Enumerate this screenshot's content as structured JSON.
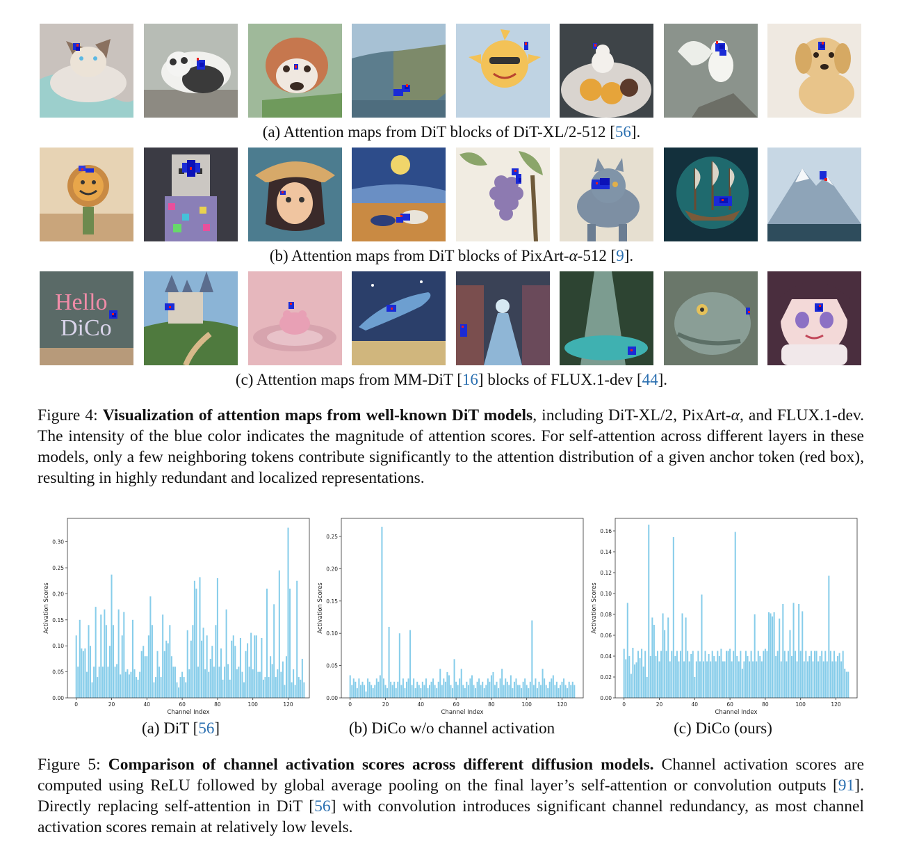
{
  "colors": {
    "attention_blue": "#0a14d8",
    "anchor_red": "#e81e1e",
    "bar_color": "#87cdea",
    "citation": "#2a6fb0"
  },
  "figure4": {
    "rows": [
      {
        "subcaption": {
          "pre": "(a) Attention maps from DiT blocks of DiT-XL/2-512 [",
          "cite": "56",
          "post": "]."
        },
        "images": [
          "siamese cat",
          "panda",
          "red panda",
          "coastal cliffs",
          "cartoon sun with sunglasses",
          "ice cream sundae",
          "white cockatoo",
          "golden retriever puppy"
        ]
      },
      {
        "subcaption": {
          "pre": "(b) Attention maps from DiT blocks of PixArt-",
          "math": "α",
          "mid": "-512 [",
          "cite": "9",
          "post": "]."
        },
        "images": [
          "smiling cactus flower",
          "pixel-art llama",
          "anime pirate boy",
          "starry night painting",
          "grapes illustration",
          "steampunk cat",
          "glowing ship",
          "snowy mountains"
        ]
      },
      {
        "subcaption": {
          "pre": "(c) Attention maps from MM-DiT [",
          "cite": "16",
          "mid": "] blocks of FLUX.1-dev [",
          "cite2": "44",
          "post": "]."
        },
        "images": [
          "neon sign",
          "fairytale castle",
          "frog in water",
          "whale over city",
          "neon street",
          "forest waterfall",
          "dragon portrait",
          "anime girl"
        ],
        "image_text": {
          "neon_line1": "Hello",
          "neon_line2": "DiCo"
        }
      }
    ],
    "caption": {
      "label": "Figure 4:",
      "bold": "Visualization of attention maps from well-known DiT models",
      "text1": ", including DiT-XL/2, PixArt-",
      "math": "α",
      "text2": ", and FLUX.1-dev. The intensity of the blue color indicates the magnitude of attention scores. For self-attention across different layers in these models, only a few neighboring tokens contribute significantly to the attention distribution of a given anchor token (red box), resulting in highly redundant and localized representations."
    }
  },
  "figure5": {
    "caption": {
      "label": "Figure 5:",
      "bold": "Comparison of channel activation scores across different diffusion models.",
      "text1": " Channel activation scores are computed using ReLU followed by global average pooling on the final layer’s self-attention or convolution outputs [",
      "cite1": "91",
      "text2": "]. Directly replacing self-attention in DiT [",
      "cite2": "56",
      "text3": "] with convolution introduces significant channel redundancy, as most channel activation scores remain at relatively low levels."
    },
    "subcaptions": [
      {
        "pre": "(a) DiT [",
        "cite": "56",
        "post": "]"
      },
      {
        "pre": "(b) DiCo w/o channel activation",
        "cite": "",
        "post": ""
      },
      {
        "pre": "(c) DiCo (ours)",
        "cite": "",
        "post": ""
      }
    ]
  },
  "chart_data": [
    {
      "type": "bar",
      "xlabel": "Channel Index",
      "ylabel": "Activation Scores",
      "xlim": [
        -5,
        132
      ],
      "ylim": [
        0,
        0.345
      ],
      "xticks": [
        0,
        20,
        40,
        60,
        80,
        100,
        120
      ],
      "yticks": [
        0.0,
        0.05,
        0.1,
        0.15,
        0.2,
        0.25,
        0.3
      ],
      "ytick_labels": [
        "0.00",
        "0.05",
        "0.10",
        "0.15",
        "0.20",
        "0.25",
        "0.30"
      ],
      "x": "channels 0-127",
      "values": [
        0.12,
        0.06,
        0.15,
        0.095,
        0.09,
        0.095,
        0.05,
        0.14,
        0.1,
        0.03,
        0.06,
        0.175,
        0.04,
        0.06,
        0.16,
        0.06,
        0.17,
        0.14,
        0.06,
        0.1,
        0.237,
        0.14,
        0.06,
        0.065,
        0.17,
        0.045,
        0.12,
        0.165,
        0.05,
        0.055,
        0.045,
        0.05,
        0.15,
        0.055,
        0.04,
        0.035,
        0.05,
        0.09,
        0.1,
        0.08,
        0.08,
        0.12,
        0.195,
        0.14,
        0.03,
        0.04,
        0.09,
        0.06,
        0.04,
        0.16,
        0.09,
        0.11,
        0.105,
        0.14,
        0.08,
        0.06,
        0.06,
        0.03,
        0.02,
        0.04,
        0.05,
        0.04,
        0.03,
        0.13,
        0.055,
        0.11,
        0.14,
        0.225,
        0.21,
        0.06,
        0.232,
        0.11,
        0.135,
        0.055,
        0.12,
        0.05,
        0.075,
        0.1,
        0.06,
        0.14,
        0.23,
        0.06,
        0.095,
        0.035,
        0.06,
        0.17,
        0.065,
        0.035,
        0.11,
        0.12,
        0.1,
        0.055,
        0.06,
        0.115,
        0.05,
        0.03,
        0.09,
        0.105,
        0.06,
        0.125,
        0.055,
        0.12,
        0.12,
        0.05,
        0.05,
        0.115,
        0.035,
        0.04,
        0.21,
        0.04,
        0.08,
        0.065,
        0.18,
        0.04,
        0.055,
        0.245,
        0.05,
        0.07,
        0.025,
        0.08,
        0.327,
        0.21,
        0.03,
        0.055,
        0.025,
        0.225,
        0.04,
        0.035,
        0.075,
        0.03
      ],
      "bar_color": "#87cdea"
    },
    {
      "type": "bar",
      "xlabel": "Channel Index",
      "ylabel": "Activation Scores",
      "xlim": [
        -5,
        132
      ],
      "ylim": [
        0,
        0.278
      ],
      "xticks": [
        0,
        20,
        40,
        60,
        80,
        100,
        120
      ],
      "yticks": [
        0.0,
        0.05,
        0.1,
        0.15,
        0.2,
        0.25
      ],
      "ytick_labels": [
        "0.00",
        "0.05",
        "0.10",
        "0.15",
        "0.20",
        "0.25"
      ],
      "x": "channels 0-127",
      "values": [
        0.035,
        0.02,
        0.03,
        0.025,
        0.015,
        0.03,
        0.02,
        0.025,
        0.02,
        0.01,
        0.03,
        0.025,
        0.02,
        0.015,
        0.02,
        0.03,
        0.025,
        0.035,
        0.265,
        0.03,
        0.02,
        0.015,
        0.11,
        0.025,
        0.02,
        0.025,
        0.015,
        0.025,
        0.1,
        0.02,
        0.03,
        0.015,
        0.025,
        0.03,
        0.105,
        0.02,
        0.03,
        0.015,
        0.025,
        0.02,
        0.015,
        0.025,
        0.02,
        0.03,
        0.015,
        0.02,
        0.025,
        0.03,
        0.02,
        0.015,
        0.025,
        0.045,
        0.02,
        0.03,
        0.025,
        0.04,
        0.035,
        0.02,
        0.015,
        0.06,
        0.025,
        0.02,
        0.03,
        0.045,
        0.02,
        0.015,
        0.025,
        0.02,
        0.03,
        0.035,
        0.02,
        0.015,
        0.025,
        0.03,
        0.02,
        0.025,
        0.015,
        0.02,
        0.03,
        0.025,
        0.035,
        0.04,
        0.02,
        0.025,
        0.015,
        0.03,
        0.045,
        0.02,
        0.03,
        0.025,
        0.02,
        0.035,
        0.015,
        0.025,
        0.03,
        0.02,
        0.02,
        0.015,
        0.025,
        0.03,
        0.02,
        0.015,
        0.025,
        0.12,
        0.02,
        0.03,
        0.015,
        0.025,
        0.02,
        0.045,
        0.03,
        0.02,
        0.015,
        0.025,
        0.03,
        0.035,
        0.02,
        0.025,
        0.015,
        0.02,
        0.025,
        0.03,
        0.02,
        0.015,
        0.025,
        0.02,
        0.025,
        0.02
      ],
      "bar_color": "#87cdea"
    },
    {
      "type": "bar",
      "xlabel": "Channel Index",
      "ylabel": "Activation Scores",
      "xlim": [
        -5,
        132
      ],
      "ylim": [
        0,
        0.172
      ],
      "xticks": [
        0,
        20,
        40,
        60,
        80,
        100,
        120
      ],
      "yticks": [
        0.0,
        0.02,
        0.04,
        0.06,
        0.08,
        0.1,
        0.12,
        0.14,
        0.16
      ],
      "ytick_labels": [
        "0.00",
        "0.02",
        "0.04",
        "0.06",
        "0.08",
        "0.10",
        "0.12",
        "0.14",
        "0.16"
      ],
      "x": "channels 0-127",
      "values": [
        0.047,
        0.037,
        0.091,
        0.04,
        0.023,
        0.048,
        0.032,
        0.034,
        0.045,
        0.038,
        0.047,
        0.03,
        0.045,
        0.02,
        0.166,
        0.04,
        0.077,
        0.07,
        0.04,
        0.045,
        0.035,
        0.045,
        0.081,
        0.065,
        0.045,
        0.077,
        0.035,
        0.045,
        0.154,
        0.04,
        0.045,
        0.035,
        0.045,
        0.081,
        0.035,
        0.077,
        0.045,
        0.035,
        0.042,
        0.045,
        0.02,
        0.035,
        0.045,
        0.035,
        0.099,
        0.035,
        0.045,
        0.035,
        0.042,
        0.035,
        0.045,
        0.04,
        0.035,
        0.045,
        0.04,
        0.047,
        0.035,
        0.035,
        0.045,
        0.045,
        0.047,
        0.035,
        0.045,
        0.159,
        0.04,
        0.035,
        0.045,
        0.028,
        0.035,
        0.045,
        0.04,
        0.035,
        0.045,
        0.035,
        0.08,
        0.035,
        0.045,
        0.04,
        0.035,
        0.045,
        0.047,
        0.045,
        0.082,
        0.081,
        0.078,
        0.082,
        0.04,
        0.045,
        0.076,
        0.035,
        0.09,
        0.045,
        0.035,
        0.045,
        0.065,
        0.04,
        0.091,
        0.045,
        0.035,
        0.09,
        0.045,
        0.083,
        0.035,
        0.045,
        0.035,
        0.04,
        0.045,
        0.035,
        0.045,
        0.045,
        0.035,
        0.04,
        0.045,
        0.035,
        0.045,
        0.035,
        0.117,
        0.045,
        0.035,
        0.045,
        0.035,
        0.04,
        0.043,
        0.035,
        0.045,
        0.028,
        0.025,
        0.025
      ],
      "bar_color": "#87cdea"
    }
  ]
}
